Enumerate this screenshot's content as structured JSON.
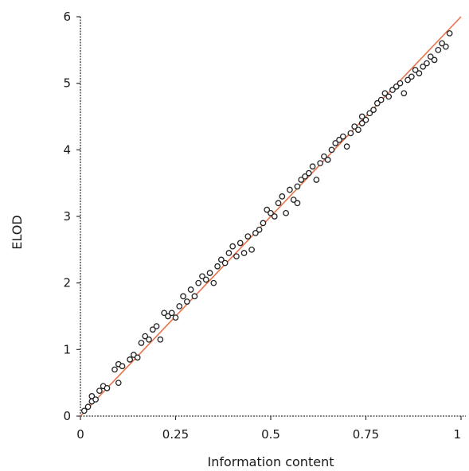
{
  "chart_data": {
    "type": "scatter",
    "title": "",
    "xlabel": "Information content",
    "ylabel": "ELOD",
    "xlim": [
      0,
      1
    ],
    "ylim": [
      0,
      6
    ],
    "x_ticks": [
      "0",
      "0.25",
      "0.5",
      "0.75",
      "1"
    ],
    "y_ticks": [
      "0",
      "1",
      "2",
      "3",
      "4",
      "5",
      "6"
    ],
    "grid": false,
    "fit_line": {
      "x": [
        0,
        1
      ],
      "y": [
        0,
        6
      ],
      "color": "#e8734a"
    },
    "series": [
      {
        "marker": "open-circle",
        "x": [
          0.01,
          0.02,
          0.03,
          0.03,
          0.04,
          0.05,
          0.06,
          0.07,
          0.09,
          0.1,
          0.1,
          0.11,
          0.13,
          0.14,
          0.15,
          0.16,
          0.17,
          0.18,
          0.19,
          0.2,
          0.21,
          0.22,
          0.23,
          0.24,
          0.25,
          0.26,
          0.27,
          0.28,
          0.29,
          0.3,
          0.31,
          0.32,
          0.33,
          0.34,
          0.35,
          0.36,
          0.37,
          0.38,
          0.39,
          0.4,
          0.41,
          0.42,
          0.43,
          0.44,
          0.45,
          0.46,
          0.47,
          0.48,
          0.49,
          0.5,
          0.51,
          0.52,
          0.53,
          0.54,
          0.55,
          0.56,
          0.57,
          0.57,
          0.58,
          0.59,
          0.6,
          0.61,
          0.62,
          0.63,
          0.64,
          0.65,
          0.66,
          0.67,
          0.68,
          0.69,
          0.7,
          0.71,
          0.72,
          0.73,
          0.74,
          0.74,
          0.75,
          0.76,
          0.77,
          0.78,
          0.79,
          0.8,
          0.81,
          0.82,
          0.83,
          0.84,
          0.85,
          0.86,
          0.87,
          0.88,
          0.89,
          0.9,
          0.91,
          0.92,
          0.93,
          0.94,
          0.95,
          0.96,
          0.97
        ],
        "y": [
          0.08,
          0.14,
          0.22,
          0.3,
          0.25,
          0.38,
          0.45,
          0.42,
          0.7,
          0.5,
          0.78,
          0.75,
          0.85,
          0.92,
          0.88,
          1.1,
          1.2,
          1.15,
          1.3,
          1.35,
          1.15,
          1.55,
          1.5,
          1.55,
          1.48,
          1.65,
          1.8,
          1.72,
          1.9,
          1.8,
          2.0,
          2.1,
          2.05,
          2.15,
          2.0,
          2.25,
          2.35,
          2.3,
          2.45,
          2.55,
          2.4,
          2.6,
          2.45,
          2.7,
          2.5,
          2.75,
          2.8,
          2.9,
          3.1,
          3.05,
          3.0,
          3.2,
          3.3,
          3.05,
          3.4,
          3.25,
          3.2,
          3.45,
          3.55,
          3.6,
          3.65,
          3.75,
          3.55,
          3.8,
          3.9,
          3.85,
          4.0,
          4.1,
          4.15,
          4.2,
          4.05,
          4.25,
          4.35,
          4.3,
          4.5,
          4.4,
          4.45,
          4.55,
          4.6,
          4.7,
          4.75,
          4.85,
          4.8,
          4.9,
          4.95,
          5.0,
          4.85,
          5.05,
          5.1,
          5.2,
          5.15,
          5.25,
          5.3,
          5.4,
          5.35,
          5.5,
          5.6,
          5.55,
          5.75
        ]
      }
    ]
  }
}
